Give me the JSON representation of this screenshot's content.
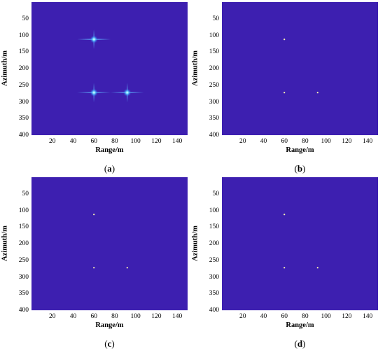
{
  "chart_data": [
    {
      "type": "heatmap",
      "panel": "a",
      "caption_open": "(",
      "caption_letter": "a",
      "caption_close": ")",
      "xlabel": "Range/m",
      "ylabel": "Azimuth/m",
      "xlim": [
        0,
        150
      ],
      "ylim": [
        400,
        0
      ],
      "xticks": [
        "20",
        "40",
        "60",
        "80",
        "100",
        "120",
        "140"
      ],
      "yticks": [
        "50",
        "100",
        "150",
        "200",
        "250",
        "300",
        "350",
        "400"
      ],
      "background_color": "#3d1fb0",
      "targets": [
        {
          "x": 60,
          "y": 112,
          "response": "spread"
        },
        {
          "x": 60,
          "y": 272,
          "response": "spread"
        },
        {
          "x": 92,
          "y": 272,
          "response": "spread"
        }
      ]
    },
    {
      "type": "heatmap",
      "panel": "b",
      "caption_open": "(",
      "caption_letter": "b",
      "caption_close": ")",
      "xlabel": "Range/m",
      "ylabel": "Azimuth/m",
      "xlim": [
        0,
        150
      ],
      "ylim": [
        400,
        0
      ],
      "xticks": [
        "20",
        "40",
        "60",
        "80",
        "100",
        "120",
        "140"
      ],
      "yticks": [
        "50",
        "100",
        "150",
        "200",
        "250",
        "300",
        "350",
        "400"
      ],
      "background_color": "#3d1fb0",
      "targets": [
        {
          "x": 60,
          "y": 112,
          "response": "point"
        },
        {
          "x": 60,
          "y": 272,
          "response": "point"
        },
        {
          "x": 92,
          "y": 272,
          "response": "point"
        }
      ]
    },
    {
      "type": "heatmap",
      "panel": "c",
      "caption_open": "(",
      "caption_letter": "c",
      "caption_close": ")",
      "xlabel": "Range/m",
      "ylabel": "Azimuth/m",
      "xlim": [
        0,
        150
      ],
      "ylim": [
        400,
        0
      ],
      "xticks": [
        "20",
        "40",
        "60",
        "80",
        "100",
        "120",
        "140"
      ],
      "yticks": [
        "50",
        "100",
        "150",
        "200",
        "250",
        "300",
        "350",
        "400"
      ],
      "background_color": "#3d1fb0",
      "targets": [
        {
          "x": 60,
          "y": 112,
          "response": "point"
        },
        {
          "x": 60,
          "y": 272,
          "response": "point"
        },
        {
          "x": 92,
          "y": 272,
          "response": "point"
        }
      ]
    },
    {
      "type": "heatmap",
      "panel": "d",
      "caption_open": "(",
      "caption_letter": "d",
      "caption_close": ")",
      "xlabel": "Range/m",
      "ylabel": "Azimuth/m",
      "xlim": [
        0,
        150
      ],
      "ylim": [
        400,
        0
      ],
      "xticks": [
        "20",
        "40",
        "60",
        "80",
        "100",
        "120",
        "140"
      ],
      "yticks": [
        "50",
        "100",
        "150",
        "200",
        "250",
        "300",
        "350",
        "400"
      ],
      "background_color": "#3d1fb0",
      "targets": [
        {
          "x": 60,
          "y": 112,
          "response": "point"
        },
        {
          "x": 60,
          "y": 272,
          "response": "point"
        },
        {
          "x": 92,
          "y": 272,
          "response": "point"
        }
      ]
    }
  ]
}
